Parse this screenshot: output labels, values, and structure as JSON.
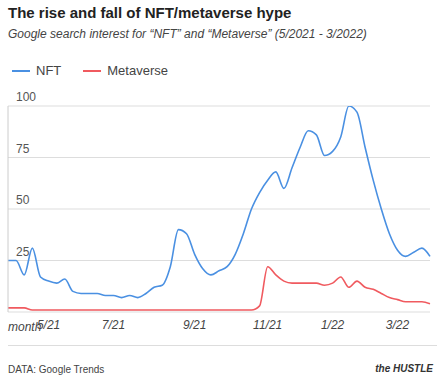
{
  "chart_data": {
    "type": "line",
    "title": "The rise and fall of NFT/metaverse hype",
    "subtitle": "Google search interest for “NFT” and “Metaverse” (5/2021 - 3/2022)",
    "xlabel": "month",
    "source": "DATA: Google Trends",
    "credit": "the HUSTLE",
    "categories": [
      null,
      null,
      null,
      null,
      null,
      "5/21",
      null,
      null,
      null,
      null,
      null,
      null,
      null,
      "7/21",
      null,
      null,
      null,
      null,
      null,
      null,
      null,
      null,
      null,
      "9/21",
      null,
      null,
      null,
      null,
      null,
      null,
      null,
      null,
      "11/21",
      null,
      null,
      null,
      null,
      null,
      null,
      null,
      "1/22",
      null,
      null,
      null,
      null,
      null,
      null,
      null,
      "3/22",
      null,
      null,
      null,
      null
    ],
    "series": [
      {
        "name": "NFT",
        "color": "#4a90e2",
        "values": [
          25,
          25,
          18,
          31,
          17,
          15,
          14,
          16,
          10,
          9,
          9,
          9,
          8,
          8,
          7,
          8,
          7,
          9,
          12,
          13,
          22,
          40,
          38,
          28,
          21,
          18,
          20,
          22,
          28,
          38,
          50,
          58,
          64,
          68,
          60,
          70,
          80,
          88,
          86,
          76,
          78,
          85,
          100,
          97,
          80,
          64,
          50,
          38,
          30,
          27,
          29,
          31,
          27
        ]
      },
      {
        "name": "Metaverse",
        "color": "#f05a5f",
        "values": [
          2,
          2,
          2,
          1,
          1,
          1,
          1,
          1,
          1,
          1,
          1,
          1,
          1,
          1,
          1,
          1,
          1,
          1,
          1,
          1,
          1,
          1,
          1,
          1,
          1,
          1,
          1,
          1,
          1,
          1,
          1,
          3,
          22,
          18,
          15,
          14,
          14,
          14,
          14,
          13,
          14,
          17,
          12,
          15,
          12,
          11,
          9,
          7,
          6,
          5,
          5,
          5,
          4
        ]
      }
    ],
    "ylim": [
      0,
      100
    ],
    "yticks": [
      25,
      50,
      75,
      100
    ],
    "grid": true,
    "legend": "top-left"
  }
}
